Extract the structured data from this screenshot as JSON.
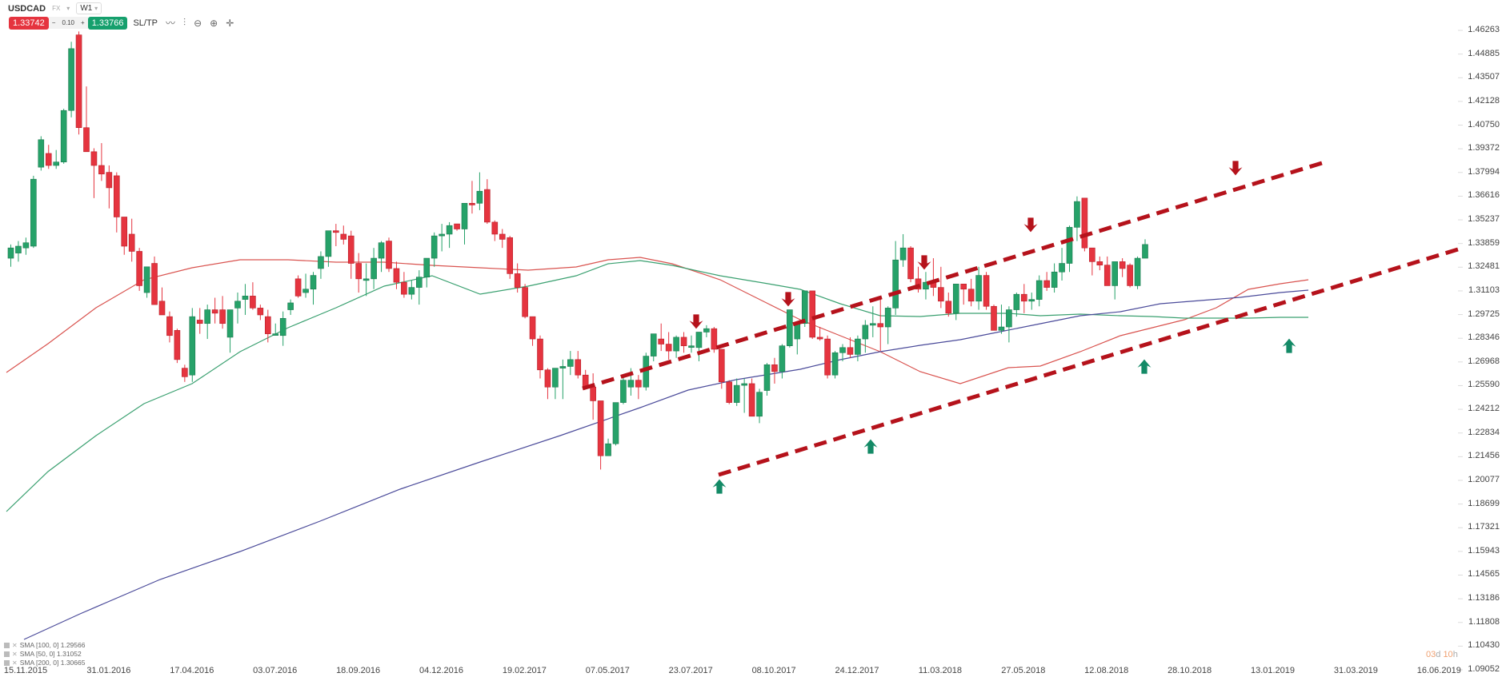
{
  "header": {
    "symbol": "USDCAD",
    "market": "FX",
    "timeframe": "W1",
    "sell_price": "1.33742",
    "volume": "0.10",
    "minus": "−",
    "plus": "+",
    "buy_price": "1.33766",
    "sltp_label": "SL/TP",
    "tools": [
      "chart-type-icon",
      "indicators-icon",
      "zoom-out-icon",
      "zoom-in-icon",
      "crosshair-icon"
    ]
  },
  "legend": [
    {
      "label": "SMA [100, 0] 1.29566",
      "color": "#c0392b"
    },
    {
      "label": "SMA [50, 0] 1.31052",
      "color": "#2e9e6a"
    },
    {
      "label": "SMA [200, 0] 1.30665",
      "color": "#3b3b8f"
    }
  ],
  "countdown": {
    "d": "03",
    "d_unit": "d",
    "h": "10",
    "h_unit": "h"
  },
  "colors": {
    "up": "#26a269",
    "down": "#e5343f",
    "trend": "#b5121b",
    "sma100": "#d9534f",
    "sma50": "#3aa070",
    "sma200": "#4b4b9a"
  },
  "chart_data": {
    "type": "candlestick",
    "title": "USDCAD W1",
    "xlabel": "",
    "ylabel": "",
    "ylim": [
      1.09052,
      1.46263
    ],
    "y_ticks": [
      "1.46263",
      "1.44885",
      "1.43507",
      "1.42128",
      "1.40750",
      "1.39372",
      "1.37994",
      "1.36616",
      "1.35237",
      "1.33859",
      "1.32481",
      "1.31103",
      "1.29725",
      "1.28346",
      "1.26968",
      "1.25590",
      "1.24212",
      "1.22834",
      "1.21456",
      "1.20077",
      "1.18699",
      "1.17321",
      "1.15943",
      "1.14565",
      "1.13186",
      "1.11808",
      "1.10430",
      "1.09052"
    ],
    "x_ticks": [
      "15.11.2015",
      "31.01.2016",
      "17.04.2016",
      "03.07.2016",
      "18.09.2016",
      "04.12.2016",
      "19.02.2017",
      "07.05.2017",
      "23.07.2017",
      "08.10.2017",
      "24.12.2017",
      "11.03.2018",
      "27.05.2018",
      "12.08.2018",
      "28.10.2018",
      "13.01.2019",
      "31.03.2019",
      "16.06.2019"
    ],
    "series": [
      {
        "name": "USDCAD",
        "type": "candlestick",
        "ohlc": [
          [
            1.33,
            1.338,
            1.325,
            1.336
          ],
          [
            1.333,
            1.34,
            1.328,
            1.337
          ],
          [
            1.336,
            1.342,
            1.332,
            1.339
          ],
          [
            1.337,
            1.378,
            1.336,
            1.376
          ],
          [
            1.383,
            1.401,
            1.381,
            1.399
          ],
          [
            1.391,
            1.396,
            1.382,
            1.384
          ],
          [
            1.384,
            1.393,
            1.382,
            1.386
          ],
          [
            1.386,
            1.417,
            1.385,
            1.416
          ],
          [
            1.416,
            1.456,
            1.412,
            1.452
          ],
          [
            1.46,
            1.462,
            1.402,
            1.406
          ],
          [
            1.406,
            1.43,
            1.397,
            1.392
          ],
          [
            1.392,
            1.394,
            1.365,
            1.384
          ],
          [
            1.384,
            1.397,
            1.375,
            1.379
          ],
          [
            1.38,
            1.384,
            1.359,
            1.371
          ],
          [
            1.378,
            1.38,
            1.345,
            1.354
          ],
          [
            1.354,
            1.351,
            1.332,
            1.337
          ],
          [
            1.344,
            1.353,
            1.328,
            1.334
          ],
          [
            1.334,
            1.336,
            1.311,
            1.314
          ],
          [
            1.31,
            1.322,
            1.307,
            1.325
          ],
          [
            1.327,
            1.331,
            1.303,
            1.303
          ],
          [
            1.305,
            1.313,
            1.298,
            1.297
          ],
          [
            1.296,
            1.299,
            1.281,
            1.285
          ],
          [
            1.288,
            1.289,
            1.269,
            1.271
          ],
          [
            1.266,
            1.268,
            1.258,
            1.261
          ],
          [
            1.262,
            1.301,
            1.258,
            1.296
          ],
          [
            1.294,
            1.301,
            1.286,
            1.292
          ],
          [
            1.292,
            1.303,
            1.283,
            1.3
          ],
          [
            1.3,
            1.307,
            1.292,
            1.298
          ],
          [
            1.3,
            1.308,
            1.289,
            1.292
          ],
          [
            1.284,
            1.3,
            1.275,
            1.3
          ],
          [
            1.301,
            1.31,
            1.292,
            1.305
          ],
          [
            1.306,
            1.315,
            1.297,
            1.308
          ],
          [
            1.308,
            1.316,
            1.3,
            1.301
          ],
          [
            1.301,
            1.303,
            1.294,
            1.297
          ],
          [
            1.296,
            1.3,
            1.281,
            1.286
          ],
          [
            1.286,
            1.292,
            1.286,
            1.286
          ],
          [
            1.285,
            1.299,
            1.279,
            1.295
          ],
          [
            1.3,
            1.306,
            1.297,
            1.304
          ],
          [
            1.318,
            1.32,
            1.307,
            1.308
          ],
          [
            1.31,
            1.321,
            1.307,
            1.312
          ],
          [
            1.312,
            1.322,
            1.303,
            1.32
          ],
          [
            1.324,
            1.334,
            1.318,
            1.331
          ],
          [
            1.331,
            1.343,
            1.325,
            1.346
          ],
          [
            1.346,
            1.35,
            1.337,
            1.345
          ],
          [
            1.344,
            1.349,
            1.338,
            1.341
          ],
          [
            1.343,
            1.346,
            1.318,
            1.327
          ],
          [
            1.327,
            1.333,
            1.31,
            1.318
          ],
          [
            1.318,
            1.327,
            1.308,
            1.318
          ],
          [
            1.318,
            1.336,
            1.312,
            1.33
          ],
          [
            1.33,
            1.34,
            1.322,
            1.339
          ],
          [
            1.34,
            1.342,
            1.322,
            1.324
          ],
          [
            1.324,
            1.328,
            1.312,
            1.316
          ],
          [
            1.316,
            1.322,
            1.307,
            1.309
          ],
          [
            1.309,
            1.317,
            1.306,
            1.313
          ],
          [
            1.313,
            1.323,
            1.303,
            1.319
          ],
          [
            1.319,
            1.329,
            1.313,
            1.33
          ],
          [
            1.33,
            1.345,
            1.325,
            1.343
          ],
          [
            1.343,
            1.35,
            1.334,
            1.344
          ],
          [
            1.344,
            1.351,
            1.336,
            1.349
          ],
          [
            1.35,
            1.35,
            1.346,
            1.347
          ],
          [
            1.347,
            1.358,
            1.338,
            1.362
          ],
          [
            1.362,
            1.375,
            1.356,
            1.361
          ],
          [
            1.362,
            1.38,
            1.358,
            1.369
          ],
          [
            1.37,
            1.376,
            1.35,
            1.351
          ],
          [
            1.351,
            1.352,
            1.34,
            1.344
          ],
          [
            1.344,
            1.347,
            1.336,
            1.341
          ],
          [
            1.342,
            1.343,
            1.318,
            1.321
          ],
          [
            1.321,
            1.327,
            1.31,
            1.313
          ],
          [
            1.313,
            1.315,
            1.295,
            1.296
          ],
          [
            1.296,
            1.296,
            1.279,
            1.283
          ],
          [
            1.283,
            1.285,
            1.26,
            1.265
          ],
          [
            1.265,
            1.266,
            1.248,
            1.255
          ],
          [
            1.255,
            1.266,
            1.248,
            1.266
          ],
          [
            1.266,
            1.271,
            1.248,
            1.267
          ],
          [
            1.267,
            1.276,
            1.262,
            1.271
          ],
          [
            1.271,
            1.276,
            1.26,
            1.262
          ],
          [
            1.262,
            1.265,
            1.255,
            1.255
          ],
          [
            1.255,
            1.263,
            1.236,
            1.247
          ],
          [
            1.247,
            1.246,
            1.207,
            1.215
          ],
          [
            1.215,
            1.225,
            1.215,
            1.222
          ],
          [
            1.222,
            1.24,
            1.221,
            1.246
          ],
          [
            1.246,
            1.261,
            1.245,
            1.259
          ],
          [
            1.255,
            1.266,
            1.25,
            1.259
          ],
          [
            1.259,
            1.262,
            1.248,
            1.255
          ],
          [
            1.255,
            1.275,
            1.253,
            1.273
          ],
          [
            1.273,
            1.285,
            1.27,
            1.286
          ],
          [
            1.283,
            1.292,
            1.276,
            1.28
          ],
          [
            1.28,
            1.287,
            1.271,
            1.276
          ],
          [
            1.276,
            1.285,
            1.272,
            1.284
          ],
          [
            1.284,
            1.287,
            1.275,
            1.279
          ],
          [
            1.279,
            1.285,
            1.275,
            1.279
          ],
          [
            1.278,
            1.287,
            1.27,
            1.287
          ],
          [
            1.287,
            1.291,
            1.284,
            1.289
          ],
          [
            1.289,
            1.29,
            1.275,
            1.277
          ],
          [
            1.277,
            1.276,
            1.254,
            1.258
          ],
          [
            1.258,
            1.259,
            1.245,
            1.246
          ],
          [
            1.246,
            1.26,
            1.244,
            1.256
          ],
          [
            1.256,
            1.26,
            1.24,
            1.257
          ],
          [
            1.257,
            1.26,
            1.238,
            1.238
          ],
          [
            1.238,
            1.254,
            1.234,
            1.252
          ],
          [
            1.253,
            1.269,
            1.25,
            1.268
          ],
          [
            1.268,
            1.272,
            1.257,
            1.264
          ],
          [
            1.264,
            1.28,
            1.26,
            1.279
          ],
          [
            1.279,
            1.3,
            1.278,
            1.3
          ],
          [
            1.283,
            1.288,
            1.274,
            1.292
          ],
          [
            1.292,
            1.311,
            1.29,
            1.311
          ],
          [
            1.311,
            1.31,
            1.283,
            1.284
          ],
          [
            1.284,
            1.29,
            1.282,
            1.283
          ],
          [
            1.283,
            1.285,
            1.26,
            1.262
          ],
          [
            1.262,
            1.276,
            1.26,
            1.275
          ],
          [
            1.275,
            1.28,
            1.27,
            1.278
          ],
          [
            1.278,
            1.284,
            1.272,
            1.274
          ],
          [
            1.274,
            1.285,
            1.27,
            1.283
          ],
          [
            1.283,
            1.294,
            1.275,
            1.291
          ],
          [
            1.291,
            1.302,
            1.284,
            1.292
          ],
          [
            1.292,
            1.308,
            1.276,
            1.29
          ],
          [
            1.29,
            1.302,
            1.28,
            1.301
          ],
          [
            1.301,
            1.34,
            1.297,
            1.329
          ],
          [
            1.329,
            1.344,
            1.325,
            1.336
          ],
          [
            1.336,
            1.337,
            1.316,
            1.318
          ],
          [
            1.318,
            1.325,
            1.31,
            1.312
          ],
          [
            1.312,
            1.322,
            1.306,
            1.316
          ],
          [
            1.316,
            1.33,
            1.308,
            1.313
          ],
          [
            1.313,
            1.325,
            1.301,
            1.305
          ],
          [
            1.305,
            1.31,
            1.296,
            1.298
          ],
          [
            1.298,
            1.313,
            1.294,
            1.315
          ],
          [
            1.315,
            1.312,
            1.303,
            1.312
          ],
          [
            1.312,
            1.318,
            1.302,
            1.305
          ],
          [
            1.305,
            1.325,
            1.3,
            1.32
          ],
          [
            1.32,
            1.322,
            1.3,
            1.302
          ],
          [
            1.302,
            1.303,
            1.288,
            1.288
          ],
          [
            1.288,
            1.303,
            1.286,
            1.29
          ],
          [
            1.29,
            1.302,
            1.281,
            1.3
          ],
          [
            1.3,
            1.31,
            1.296,
            1.309
          ],
          [
            1.309,
            1.315,
            1.298,
            1.305
          ],
          [
            1.305,
            1.31,
            1.3,
            1.306
          ],
          [
            1.306,
            1.32,
            1.302,
            1.317
          ],
          [
            1.317,
            1.322,
            1.311,
            1.313
          ],
          [
            1.313,
            1.327,
            1.31,
            1.322
          ],
          [
            1.322,
            1.336,
            1.317,
            1.327
          ],
          [
            1.327,
            1.349,
            1.322,
            1.348
          ],
          [
            1.348,
            1.366,
            1.34,
            1.363
          ],
          [
            1.365,
            1.365,
            1.334,
            1.336
          ],
          [
            1.336,
            1.334,
            1.32,
            1.328
          ],
          [
            1.328,
            1.331,
            1.323,
            1.326
          ],
          [
            1.326,
            1.331,
            1.315,
            1.314
          ],
          [
            1.314,
            1.328,
            1.306,
            1.328
          ],
          [
            1.328,
            1.33,
            1.319,
            1.324
          ],
          [
            1.326,
            1.327,
            1.313,
            1.314
          ],
          [
            1.314,
            1.331,
            1.312,
            1.33
          ],
          [
            1.33,
            1.341,
            1.33,
            1.338
          ]
        ]
      },
      {
        "name": "SMA [100, 0]",
        "value": 1.29566
      },
      {
        "name": "SMA [50, 0]",
        "value": 1.31052
      },
      {
        "name": "SMA [200, 0]",
        "value": 1.30665
      }
    ],
    "annotations": [
      {
        "type": "trendline-upper",
        "style": "dashed",
        "from": [
          "~Jun 2017",
          1.257
        ],
        "to": [
          "~Feb 2019",
          1.378
        ]
      },
      {
        "type": "trendline-lower",
        "style": "dashed",
        "from": [
          "~Aug 2017",
          1.205
        ],
        "to": [
          "~May 2019",
          1.33
        ]
      },
      {
        "type": "down-arrow",
        "count": 5
      },
      {
        "type": "up-arrow",
        "count": 4
      }
    ],
    "legend_position": "bottom-left",
    "grid": false
  }
}
